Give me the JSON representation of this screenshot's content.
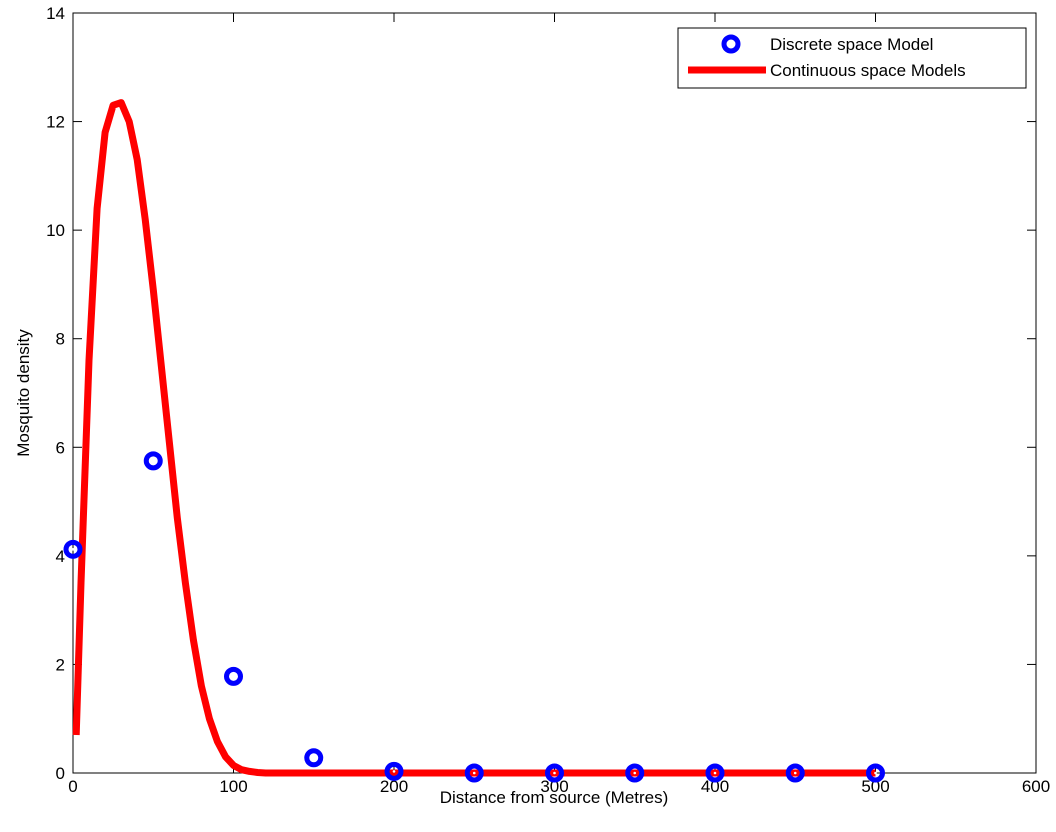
{
  "chart_data": {
    "type": "line",
    "xlabel": "Distance from source (Metres)",
    "ylabel": "Mosquito density",
    "xlim": [
      0,
      600
    ],
    "ylim": [
      0,
      14
    ],
    "xticks": [
      "0",
      "100",
      "200",
      "300",
      "400",
      "500",
      "600"
    ],
    "yticks": [
      "0",
      "2",
      "4",
      "6",
      "8",
      "10",
      "12",
      "14"
    ],
    "grid": false,
    "legend_position": "top-right",
    "series": [
      {
        "name": "Discrete space Model",
        "kind": "scatter",
        "color": "#0000ff",
        "x": [
          0,
          50,
          100,
          150,
          200,
          250,
          300,
          350,
          400,
          450,
          500
        ],
        "y": [
          4.12,
          5.75,
          1.78,
          0.28,
          0.03,
          0.0,
          0.0,
          0.0,
          0.0,
          0.0,
          0.0
        ]
      },
      {
        "name": "Continuous space Models",
        "kind": "line",
        "color": "#ff0000",
        "x": [
          2,
          5,
          10,
          15,
          20,
          25,
          30,
          35,
          40,
          45,
          50,
          55,
          60,
          65,
          70,
          75,
          80,
          85,
          90,
          95,
          100,
          105,
          110,
          115,
          120,
          130,
          150,
          200,
          250,
          300,
          350,
          400,
          450,
          500
        ],
        "y": [
          0.7,
          3.5,
          7.6,
          10.4,
          11.8,
          12.3,
          12.35,
          12.0,
          11.3,
          10.2,
          8.9,
          7.5,
          6.1,
          4.7,
          3.5,
          2.45,
          1.6,
          1.0,
          0.58,
          0.3,
          0.14,
          0.06,
          0.03,
          0.01,
          0.0,
          0.0,
          0.0,
          0.0,
          0.0,
          0.0,
          0.0,
          0.0,
          0.0,
          0.0
        ]
      }
    ]
  }
}
